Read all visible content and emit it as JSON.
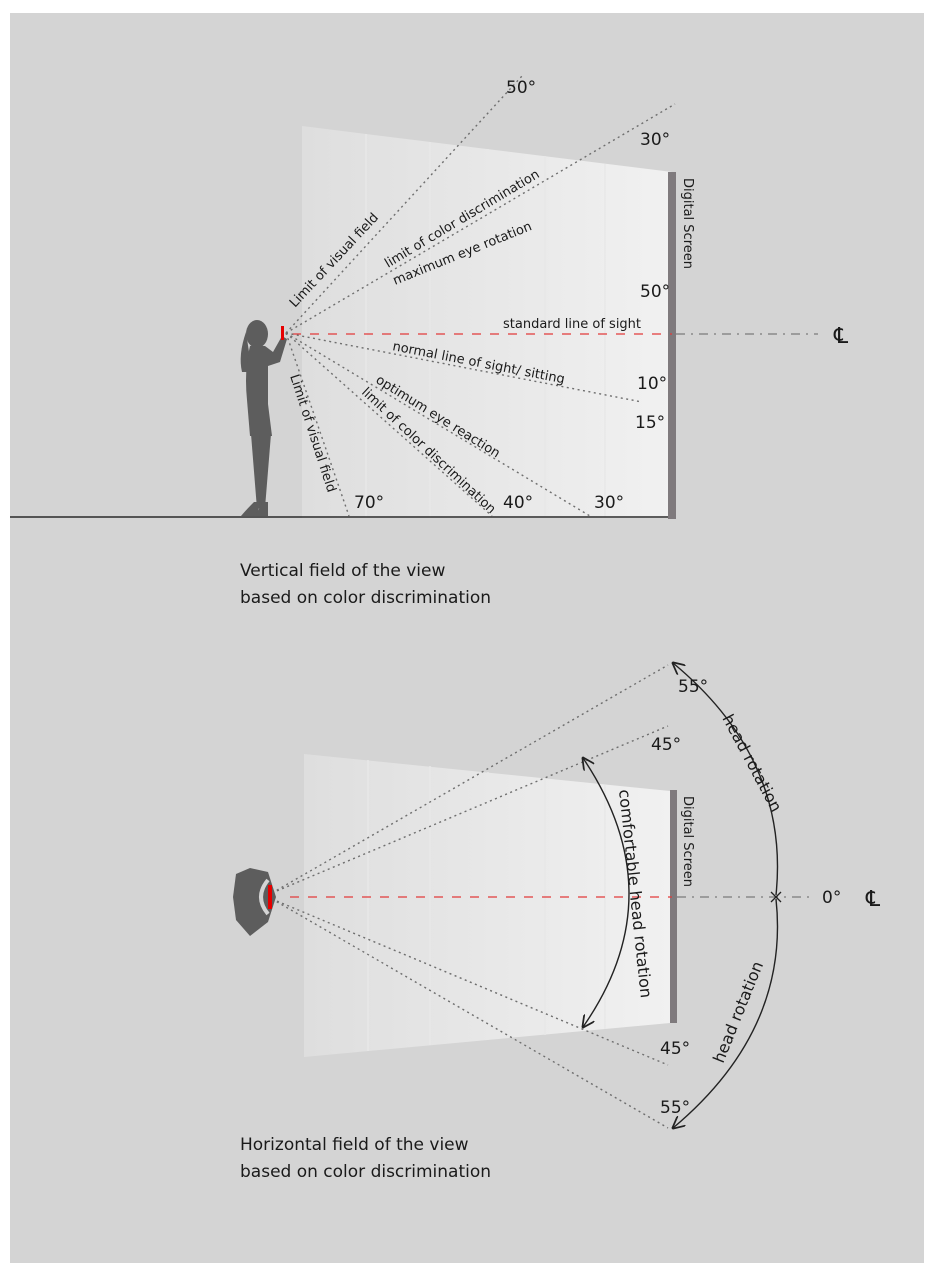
{
  "vertical_view": {
    "screen_label": "Digital Screen",
    "standard_line_of_sight": "standard line of sight",
    "centerline_symbol": "℄",
    "labels": {
      "limit_visual_field_upper": "Limit of visual field",
      "limit_color_upper": "limit of color discrimination",
      "max_eye_rotation": "maximum eye rotation",
      "normal_line_sitting": "normal line of sight/ sitting",
      "optimum_eye_reaction": "optimum eye reaction",
      "limit_color_lower": "limit of color discrimination",
      "limit_visual_field_lower": "Limit of visual field"
    },
    "angles": {
      "upper_50": "50°",
      "upper_30": "30°",
      "screen_50": "50°",
      "down_10": "10°",
      "down_15": "15°",
      "lower_70": "70°",
      "lower_40": "40°",
      "lower_30": "30°"
    },
    "caption_line1": "Vertical field of the view",
    "caption_line2": "based on color discrimination"
  },
  "horizontal_view": {
    "screen_label": "Digital Screen",
    "centerline_symbol": "℄",
    "angles": {
      "upper_55": "55°",
      "upper_45": "45°",
      "center_0": "0°",
      "lower_45": "45°",
      "lower_55": "55°"
    },
    "head_rotation_upper": "head rotation",
    "head_rotation_lower": "head rotation",
    "comfortable_head_rotation": "comfortable head rotation",
    "caption_line1": "Horizontal field of the view",
    "caption_line2": "based on color discrimination"
  },
  "colors": {
    "background": "#d4d4d4",
    "screen_bar": "#7f7a7d",
    "figure": "#5d5d5d",
    "sight_line": "#e23a3a",
    "device": "#e60000"
  },
  "icons": {
    "person": "person-standing-icon",
    "head": "head-top-view-icon"
  }
}
